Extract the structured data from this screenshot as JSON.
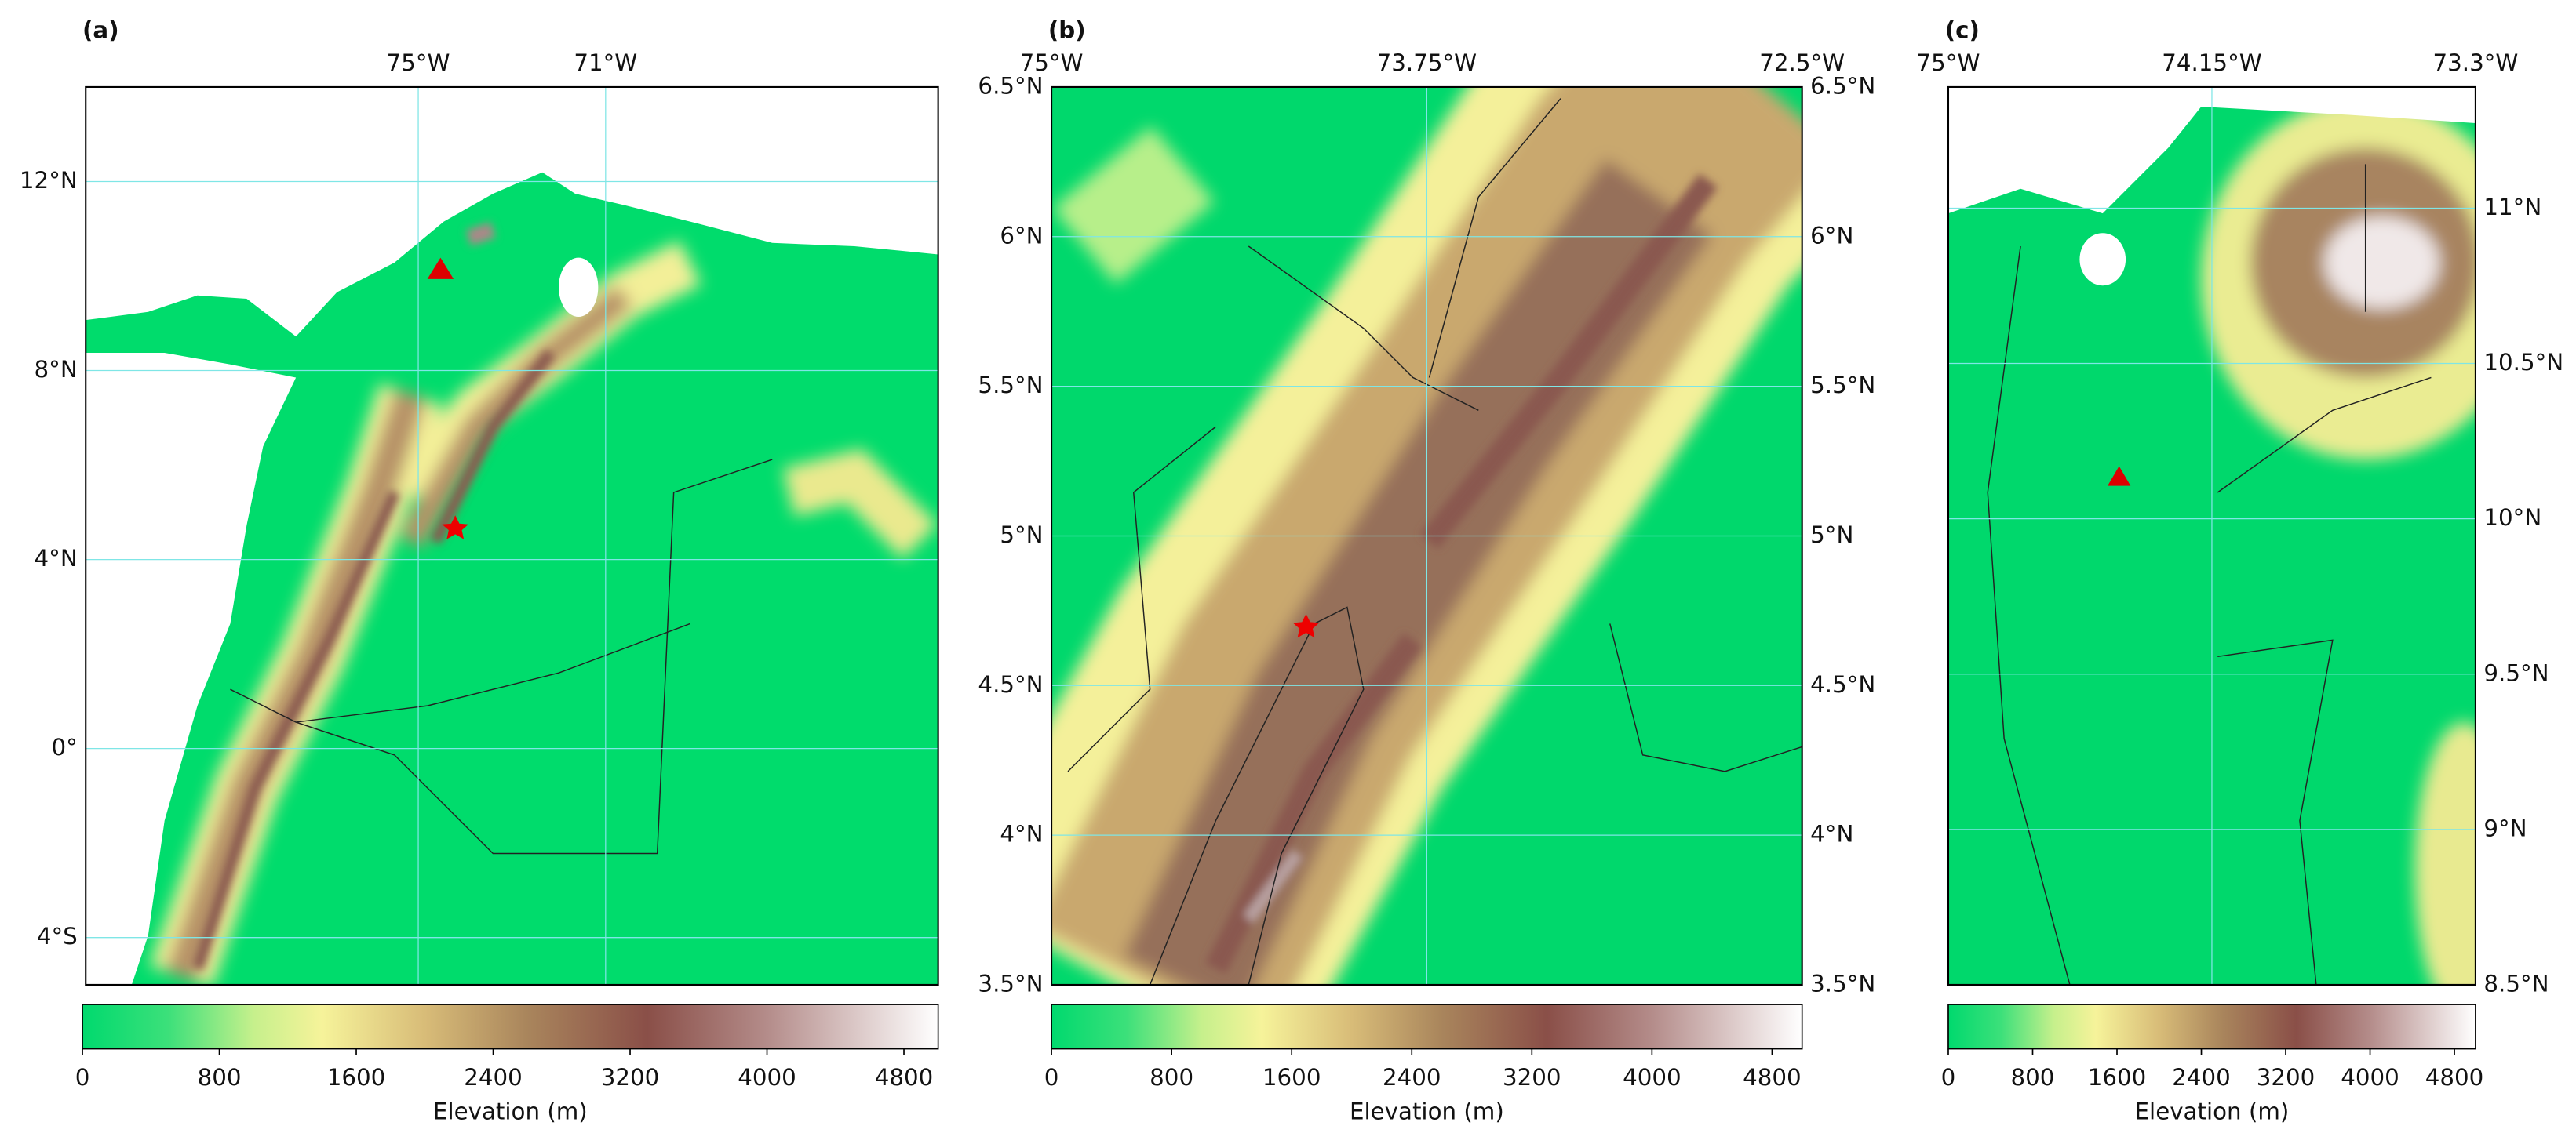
{
  "panels": [
    {
      "label": "(a)",
      "xlim": [
        -82.1,
        -63.9
      ],
      "ylim": [
        -5,
        14
      ],
      "xticks": [
        {
          "value": -75,
          "label": "75°W"
        },
        {
          "value": -71,
          "label": "71°W"
        }
      ],
      "yticks": [
        {
          "value": 12,
          "label": "12°N"
        },
        {
          "value": 8,
          "label": "8°N"
        },
        {
          "value": 4,
          "label": "4°N"
        },
        {
          "value": 0,
          "label": "0°"
        },
        {
          "value": -4,
          "label": "4°S"
        }
      ],
      "colorbar": {
        "range": [
          0,
          5000
        ],
        "ticks": [
          0,
          800,
          1600,
          2400,
          3200,
          4000,
          4800
        ],
        "label": "Elevation (m)"
      }
    },
    {
      "label": "(b)",
      "xlim": [
        -75,
        -72.5
      ],
      "ylim": [
        3.5,
        6.5
      ],
      "xticks": [
        {
          "value": -75,
          "label": "75°W"
        },
        {
          "value": -73.75,
          "label": "73.75°W"
        },
        {
          "value": -72.5,
          "label": "72.5°W"
        }
      ],
      "yticks": [
        {
          "value": 6.5,
          "label": "6.5°N"
        },
        {
          "value": 6,
          "label": "6°N"
        },
        {
          "value": 5.5,
          "label": "5.5°N"
        },
        {
          "value": 5,
          "label": "5°N"
        },
        {
          "value": 4.5,
          "label": "4.5°N"
        },
        {
          "value": 4,
          "label": "4°N"
        },
        {
          "value": 3.5,
          "label": "3.5°N"
        }
      ],
      "colorbar": {
        "range": [
          0,
          5000
        ],
        "ticks": [
          0,
          800,
          1600,
          2400,
          3200,
          4000,
          4800
        ],
        "label": "Elevation (m)"
      }
    },
    {
      "label": "(c)",
      "xlim": [
        -75,
        -73.3
      ],
      "ylim": [
        8.5,
        11.39
      ],
      "xticks": [
        {
          "value": -75,
          "label": "75°W"
        },
        {
          "value": -74.15,
          "label": "74.15°W"
        },
        {
          "value": -73.3,
          "label": "73.3°W"
        }
      ],
      "yticks": [
        {
          "value": 11,
          "label": "11°N"
        },
        {
          "value": 10.5,
          "label": "10.5°N"
        },
        {
          "value": 10,
          "label": "10°N"
        },
        {
          "value": 9.5,
          "label": "9.5°N"
        },
        {
          "value": 9,
          "label": "9°N"
        },
        {
          "value": 8.5,
          "label": "8.5°N"
        }
      ],
      "colorbar": {
        "range": [
          0,
          5000
        ],
        "ticks": [
          0,
          800,
          1600,
          2400,
          3200,
          4000,
          4800
        ],
        "label": "Elevation (m)"
      }
    }
  ]
}
